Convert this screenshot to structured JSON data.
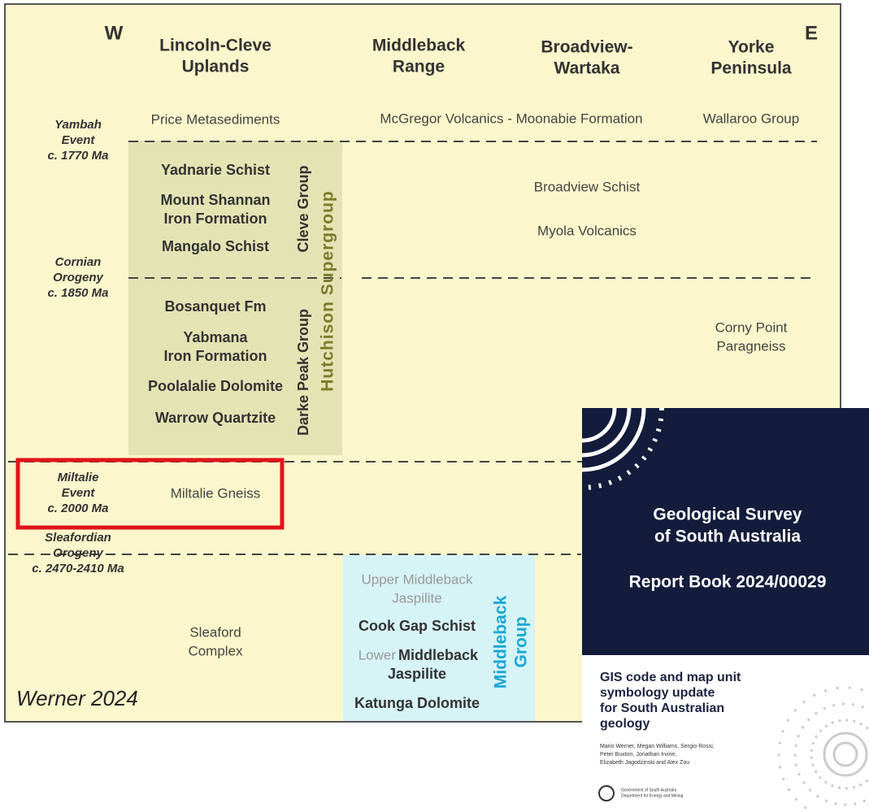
{
  "compass": {
    "west": "W",
    "east": "E"
  },
  "columns": [
    [
      "Lincoln-Cleve",
      "Uplands"
    ],
    [
      "Middleback",
      "Range"
    ],
    [
      "Broadview-",
      "Wartaka"
    ],
    [
      "Yorke",
      "Peninsula"
    ]
  ],
  "events": [
    [
      "Yambah",
      "Event",
      "c. 1770 Ma"
    ],
    [
      "Cornian",
      "Orogeny",
      "c. 1850 Ma"
    ],
    [
      "Miltalie",
      "Event",
      "c. 2000 Ma"
    ],
    [
      "Sleafordian",
      "Orogeny",
      "c. 2470-2410 Ma"
    ]
  ],
  "top_units": [
    "Price Metasediments",
    "McGregor Volcanics - Moonabie Formation",
    "Wallaroo Group"
  ],
  "cleve_units": [
    "Yadnarie Schist",
    [
      "Mount Shannan",
      "Iron Formation"
    ],
    "Mangalo Schist"
  ],
  "darke_peak_units": [
    "Bosanquet Fm",
    [
      "Yabmana",
      "Iron Formation"
    ],
    "Poolalalie Dolomite",
    "Warrow Quartzite"
  ],
  "groups": {
    "cleve": "Cleve Group",
    "darke_peak": "Darke Peak Group",
    "hutchison": "Hutchison Supergroup",
    "middleback": [
      "Middleback",
      "Group"
    ]
  },
  "other_units": {
    "broadview": "Broadview Schist",
    "myola": "Myola Volcanics",
    "corny_point": [
      "Corny Point",
      "Paragneiss"
    ],
    "miltalie": "Miltalie Gneiss",
    "sleaford": [
      "Sleaford",
      "Complex"
    ]
  },
  "middleback_units": {
    "upper": [
      "Upper Middleback",
      "Jaspilite"
    ],
    "cook_gap": "Cook Gap Schist",
    "lower_prefix": "Lower",
    "lower": [
      "Middleback",
      "Jaspilite"
    ],
    "katunga": "Katunga Dolomite"
  },
  "credit": "Werner 2024",
  "cover": {
    "title": [
      "Geological Survey",
      "of South Australia"
    ],
    "report": "Report Book 2024/00029",
    "subtitle": [
      "GIS code and map unit",
      "symbology update",
      "for South Australian",
      "geology"
    ],
    "authors": [
      "Mario Werner, Megan Williams, Sergio Rossi,",
      "Peter Buxton, Jonathan Irvine,",
      "Elizabeth Jagodzinski and Alex Zou"
    ],
    "logo": [
      "Government of South Australia",
      "Department for Energy and Mining"
    ]
  }
}
